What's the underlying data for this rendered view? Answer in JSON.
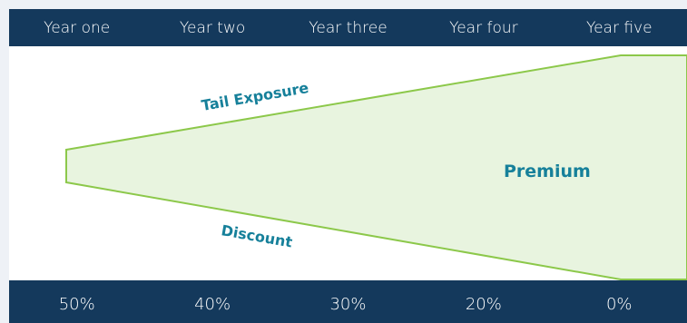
{
  "years": [
    "Year one",
    "Year two",
    "Year three",
    "Year four",
    "Year five"
  ],
  "percentages": [
    "50%",
    "40%",
    "30%",
    "20%",
    "0%"
  ],
  "labels": {
    "tail_exposure": "Tail Exposure",
    "premium": "Premium",
    "discount": "Discount"
  },
  "colors": {
    "header_bg": "#14395c",
    "shape_fill": "#e8f4df",
    "shape_stroke": "#8cc84a",
    "label_text": "#16809a",
    "page_bg": "#eef1f6"
  }
}
